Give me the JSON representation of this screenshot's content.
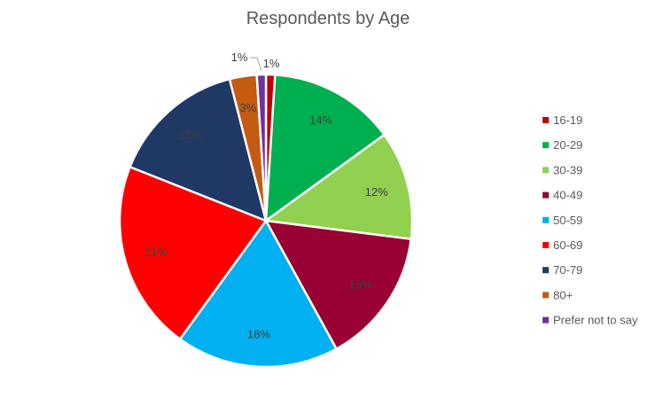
{
  "chart_data": {
    "type": "pie",
    "title": "Respondents by Age",
    "categories": [
      "16-19",
      "20-29",
      "30-39",
      "40-49",
      "50-59",
      "60-69",
      "70-79",
      "80+",
      "Prefer not to say"
    ],
    "values": [
      1,
      14,
      12,
      15,
      18,
      21,
      15,
      3,
      1
    ],
    "labels": [
      "1%",
      "14%",
      "12%",
      "15%",
      "18%",
      "21%",
      "15%",
      "3%",
      "1%"
    ],
    "colors": [
      "#C00000",
      "#00B050",
      "#92D050",
      "#990033",
      "#00B0F0",
      "#FF0000",
      "#203864",
      "#C55A11",
      "#7030A0"
    ],
    "legend_position": "right"
  }
}
